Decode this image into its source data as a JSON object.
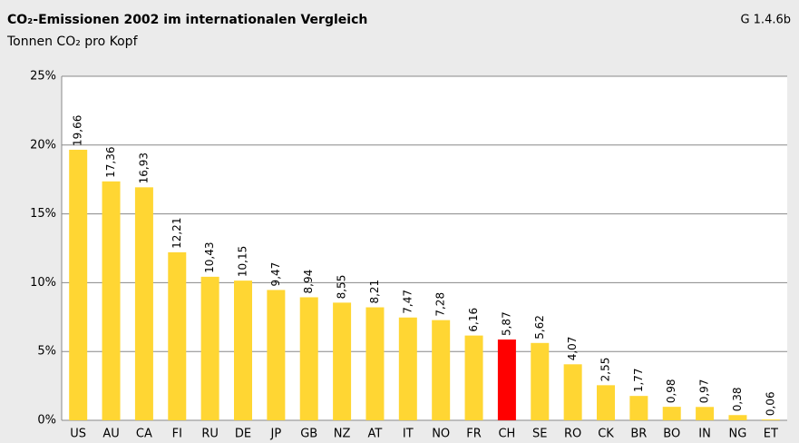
{
  "chart_data": {
    "type": "bar",
    "title": "CO₂-Emissionen 2002 im internationalen Vergleich",
    "subtitle": "Tonnen CO₂ pro Kopf",
    "code": "G 1.4.6b",
    "categories": [
      "US",
      "AU",
      "CA",
      "FI",
      "RU",
      "DE",
      "JP",
      "GB",
      "NZ",
      "AT",
      "IT",
      "NO",
      "FR",
      "CH",
      "SE",
      "RO",
      "CK",
      "BR",
      "BO",
      "IN",
      "NG",
      "ET"
    ],
    "values": [
      19.66,
      17.36,
      16.93,
      12.21,
      10.43,
      10.15,
      9.47,
      8.94,
      8.55,
      8.21,
      7.47,
      7.28,
      6.16,
      5.87,
      5.62,
      4.07,
      2.55,
      1.77,
      0.98,
      0.97,
      0.38,
      0.06
    ],
    "value_labels": [
      "19,66",
      "17,36",
      "16,93",
      "12,21",
      "10,43",
      "10,15",
      "9,47",
      "8,94",
      "8,55",
      "8,21",
      "7,47",
      "7,28",
      "6,16",
      "5,87",
      "5,62",
      "4,07",
      "2,55",
      "1,77",
      "0,98",
      "0,97",
      "0,38",
      "0,06"
    ],
    "colors": [
      "#ffd633",
      "#ffd633",
      "#ffd633",
      "#ffd633",
      "#ffd633",
      "#ffd633",
      "#ffd633",
      "#ffd633",
      "#ffd633",
      "#ffd633",
      "#ffd633",
      "#ffd633",
      "#ffd633",
      "#ff0000",
      "#ffd633",
      "#ffd633",
      "#ffd633",
      "#ffd633",
      "#ffd633",
      "#ffd633",
      "#ffd633",
      "#ffd633"
    ],
    "ylim": [
      0,
      25
    ],
    "yticks": [
      {
        "value": 0,
        "label": "0%"
      },
      {
        "value": 5,
        "label": "5%"
      },
      {
        "value": 10,
        "label": "10%"
      },
      {
        "value": 15,
        "label": "15%"
      },
      {
        "value": 20,
        "label": "20%"
      },
      {
        "value": 25,
        "label": "25%"
      }
    ],
    "grid": true
  }
}
